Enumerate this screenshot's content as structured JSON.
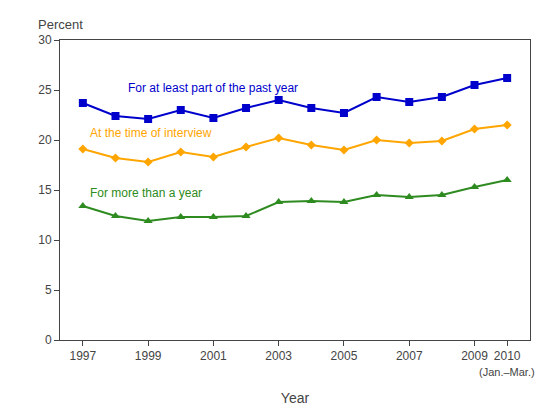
{
  "chart_data": {
    "type": "line",
    "x": [
      1997,
      1998,
      1999,
      2000,
      2001,
      2002,
      2003,
      2004,
      2005,
      2006,
      2007,
      2008,
      2009,
      2010
    ],
    "series": [
      {
        "name": "For at least part of the past year",
        "color": "#0000CC",
        "marker": "square",
        "values": [
          23.7,
          22.4,
          22.1,
          23.0,
          22.2,
          23.2,
          24.0,
          23.2,
          22.7,
          24.3,
          23.8,
          24.3,
          25.5,
          26.2
        ]
      },
      {
        "name": "At the time of interview",
        "color": "#FFA500",
        "marker": "diamond",
        "values": [
          19.1,
          18.2,
          17.8,
          18.8,
          18.3,
          19.3,
          20.2,
          19.5,
          19.0,
          20.0,
          19.7,
          19.9,
          21.1,
          21.5
        ]
      },
      {
        "name": "For more than a year",
        "color": "#2E8B20",
        "marker": "triangle-up",
        "values": [
          13.4,
          12.4,
          11.9,
          12.3,
          12.3,
          12.4,
          13.8,
          13.9,
          13.8,
          14.5,
          14.3,
          14.5,
          15.3,
          16.0
        ]
      }
    ],
    "xlabel": "Year",
    "ylabel": "Percent",
    "xlim": [
      1996.3,
      2010.7
    ],
    "xticks": [
      1997,
      1999,
      2001,
      2003,
      2005,
      2007,
      2009,
      2010
    ],
    "ylim": [
      0,
      30
    ],
    "yticks": [
      0,
      5,
      10,
      15,
      20,
      25,
      30
    ],
    "annotations": [
      "(Jan.–Mar.)"
    ],
    "grid": false
  }
}
